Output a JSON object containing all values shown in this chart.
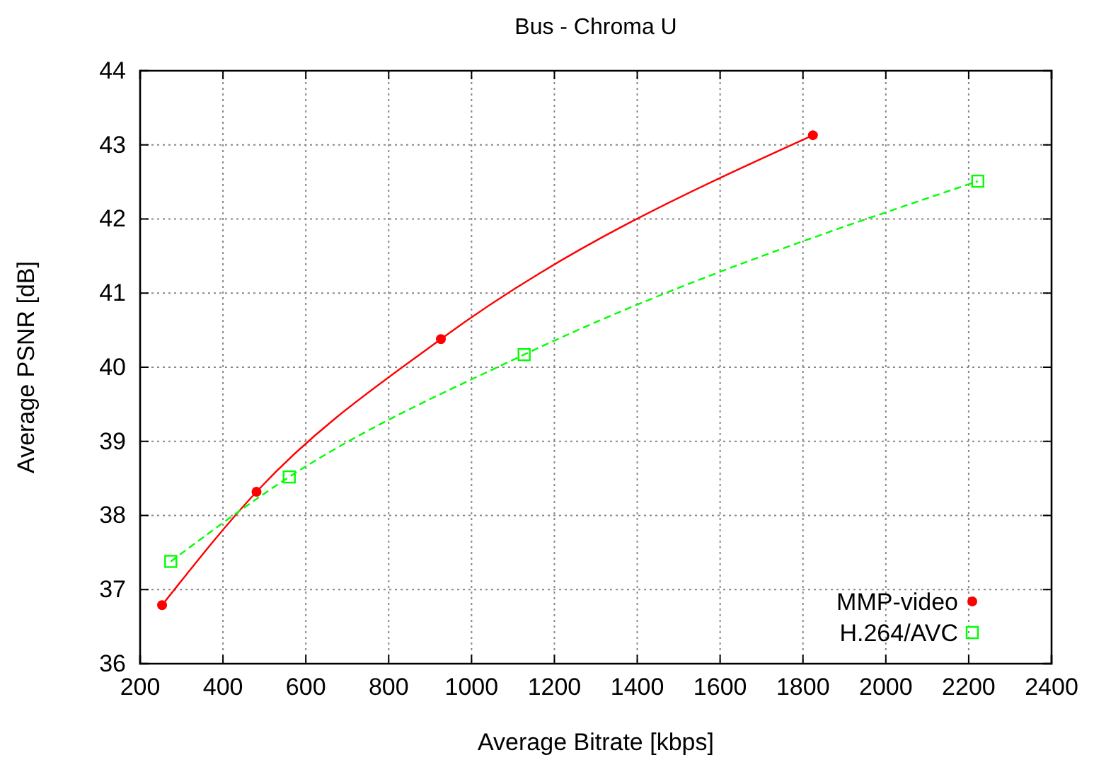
{
  "chart_data": {
    "type": "line",
    "title": "Bus - Chroma U",
    "xlabel": "Average Bitrate [kbps]",
    "ylabel": "Average PSNR [dB]",
    "xlim": [
      200,
      2400
    ],
    "xticks": [
      200,
      400,
      600,
      800,
      1000,
      1200,
      1400,
      1600,
      1800,
      2000,
      2200,
      2400
    ],
    "ylim": [
      36,
      44
    ],
    "yticks": [
      36,
      37,
      38,
      39,
      40,
      41,
      42,
      43,
      44
    ],
    "grid": true,
    "legend": "bottom right",
    "series": [
      {
        "name": "MMP-video",
        "color": "#ff0000",
        "marker": "circle",
        "line_style": "solid",
        "x": [
          253,
          481,
          926,
          1824
        ],
        "values": [
          36.79,
          38.32,
          40.38,
          43.13
        ]
      },
      {
        "name": "H.264/AVC",
        "color": "#00ff00",
        "marker": "square",
        "line_style": "dashed",
        "x": [
          274,
          560,
          1127,
          2222
        ],
        "values": [
          37.38,
          38.52,
          40.17,
          42.51
        ]
      }
    ]
  }
}
